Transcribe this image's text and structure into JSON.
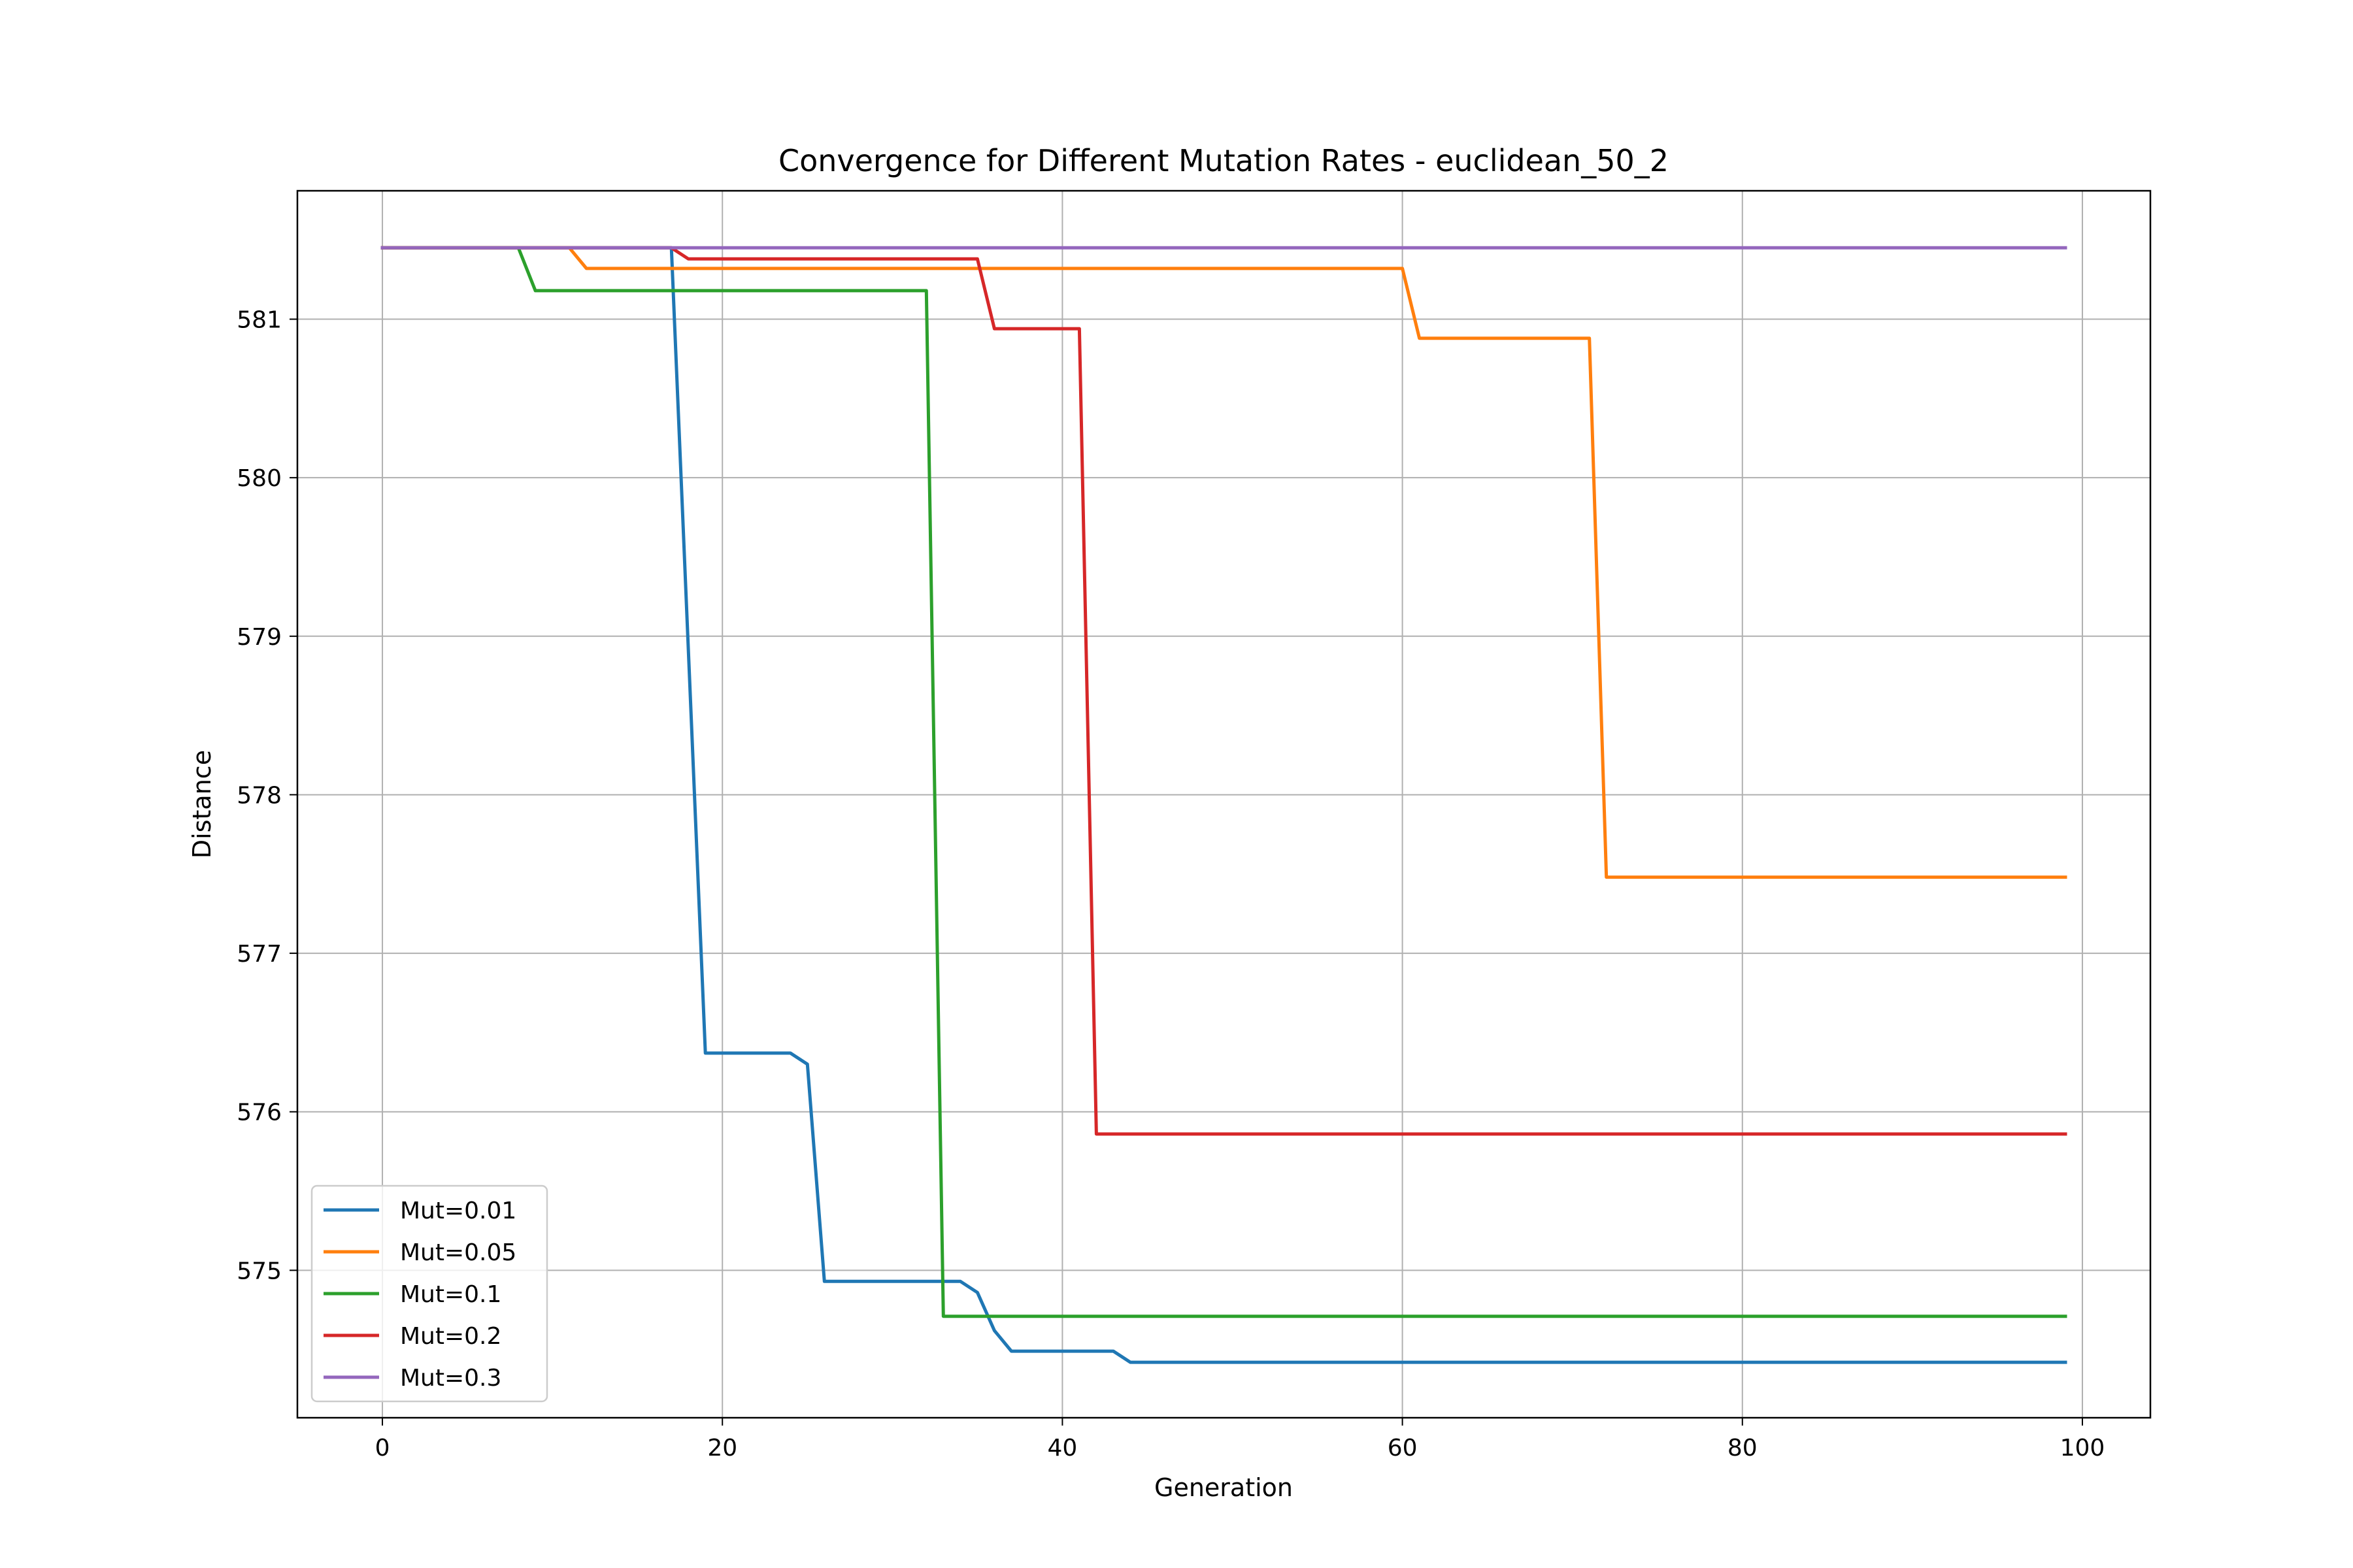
{
  "chart_data": {
    "type": "line",
    "title": "Convergence for Different Mutation Rates - euclidean_50_2",
    "xlabel": "Generation",
    "ylabel": "Distance",
    "xlim": [
      -5,
      104
    ],
    "ylim": [
      574.07,
      581.81
    ],
    "xticks": [
      0,
      20,
      40,
      60,
      80,
      100
    ],
    "yticks": [
      575,
      576,
      577,
      578,
      579,
      580,
      581
    ],
    "grid": true,
    "legend_position": "lower-left",
    "series": [
      {
        "name": "Mut=0.01",
        "color": "#1f77b4",
        "points": [
          [
            0,
            581.45
          ],
          [
            17,
            581.45
          ],
          [
            19,
            576.37
          ],
          [
            24,
            576.37
          ],
          [
            25,
            576.3
          ],
          [
            26,
            574.93
          ],
          [
            34,
            574.93
          ],
          [
            35,
            574.86
          ],
          [
            36,
            574.62
          ],
          [
            37,
            574.49
          ],
          [
            43,
            574.49
          ],
          [
            44,
            574.42
          ],
          [
            99,
            574.42
          ]
        ]
      },
      {
        "name": "Mut=0.05",
        "color": "#ff7f0e",
        "points": [
          [
            0,
            581.45
          ],
          [
            11,
            581.45
          ],
          [
            12,
            581.32
          ],
          [
            60,
            581.32
          ],
          [
            61,
            580.88
          ],
          [
            71,
            580.88
          ],
          [
            72,
            577.48
          ],
          [
            99,
            577.48
          ]
        ]
      },
      {
        "name": "Mut=0.1",
        "color": "#2ca02c",
        "points": [
          [
            0,
            581.45
          ],
          [
            8,
            581.45
          ],
          [
            9,
            581.18
          ],
          [
            32,
            581.18
          ],
          [
            33,
            574.71
          ],
          [
            99,
            574.71
          ]
        ]
      },
      {
        "name": "Mut=0.2",
        "color": "#d62728",
        "points": [
          [
            0,
            581.45
          ],
          [
            17,
            581.45
          ],
          [
            18,
            581.38
          ],
          [
            35,
            581.38
          ],
          [
            36,
            580.94
          ],
          [
            41,
            580.94
          ],
          [
            42,
            575.86
          ],
          [
            99,
            575.86
          ]
        ]
      },
      {
        "name": "Mut=0.3",
        "color": "#9467bd",
        "points": [
          [
            0,
            581.45
          ],
          [
            99,
            581.45
          ]
        ]
      }
    ]
  }
}
